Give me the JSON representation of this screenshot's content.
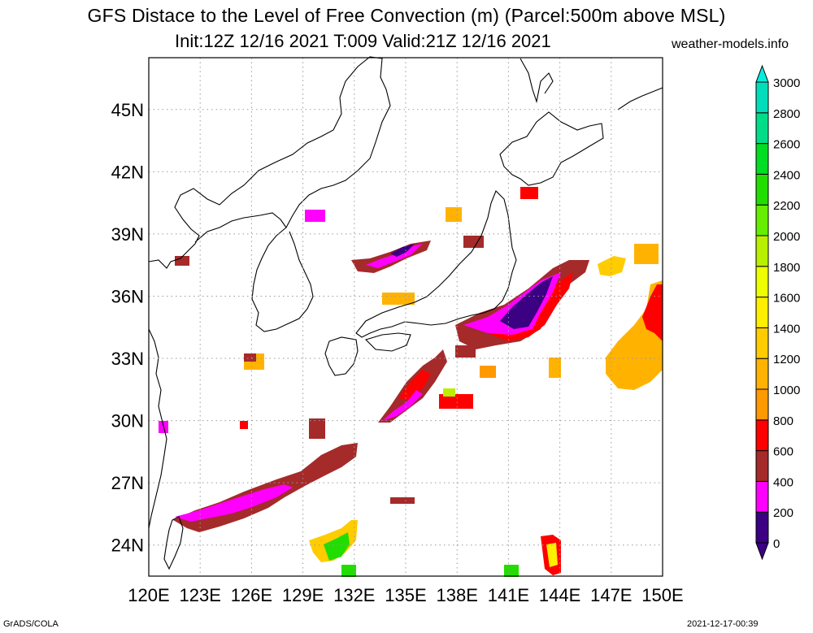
{
  "title": {
    "line1": "GFS Distace to the Level of Free Convection (m) (Parcel:500m above MSL)",
    "line2": "Init:12Z 12/16 2021 T:009 Valid:21Z 12/16 2021",
    "site": "weather-models.info"
  },
  "footer": {
    "left": "GrADS/COLA",
    "right": "2021-12-17-00:39"
  },
  "axes": {
    "lon_labels": [
      "120E",
      "123E",
      "126E",
      "129E",
      "132E",
      "135E",
      "138E",
      "141E",
      "144E",
      "147E",
      "150E"
    ],
    "lat_labels": [
      "24N",
      "27N",
      "30N",
      "33N",
      "36N",
      "39N",
      "42N",
      "45N"
    ],
    "lon_range": [
      120,
      150
    ],
    "lat_range": [
      22.5,
      47.5
    ]
  },
  "colorbar": {
    "labels": [
      "0",
      "200",
      "400",
      "600",
      "800",
      "1000",
      "1200",
      "1400",
      "1600",
      "1800",
      "2000",
      "2200",
      "2400",
      "2600",
      "2800",
      "3000"
    ],
    "colors": [
      "#3c0082",
      "#ff00ff",
      "#a52a2a",
      "#ff0000",
      "#ff9900",
      "#ffb300",
      "#ffcc00",
      "#ffee00",
      "#eeff00",
      "#b8f000",
      "#66ee00",
      "#22dd00",
      "#00dd22",
      "#00dd88",
      "#00ddbb",
      "#00eedd"
    ],
    "top_arrow_color": "#00eedd",
    "bottom_arrow_color": "#3c0082"
  },
  "colors": {
    "grid": "#9a9a9a",
    "coast": "#000000"
  }
}
